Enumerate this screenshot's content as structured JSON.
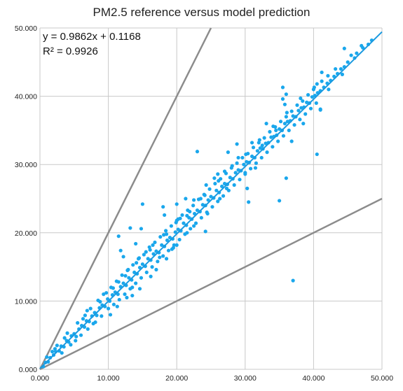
{
  "chart_data": {
    "type": "scatter",
    "title": "PM2.5 reference versus model prediction",
    "xlabel": "",
    "ylabel": "",
    "xlim": [
      0,
      50
    ],
    "ylim": [
      0,
      50
    ],
    "x_ticks": [
      "0.000",
      "10.000",
      "20.000",
      "30.000",
      "40.000",
      "50.000"
    ],
    "y_ticks": [
      "0.000",
      "10.000",
      "20.000",
      "30.000",
      "40.000",
      "50.000"
    ],
    "grid": true,
    "trendline": {
      "slope": 0.9862,
      "intercept": 0.1168,
      "equation": "y = 0.9862x + 0.1168",
      "r2": "R² = 0.9926"
    },
    "reference_lines": [
      {
        "slope": 2.0,
        "intercept": 0
      },
      {
        "slope": 0.5,
        "intercept": 0
      }
    ],
    "colors": {
      "points": "#1aa7ec",
      "trendline": "#1a9ae0",
      "reference": "#8c8c8c",
      "grid": "#c8c8c8"
    },
    "series": [
      {
        "values": [
          [
            0.5,
            0.4
          ],
          [
            0.8,
            1.0
          ],
          [
            1.2,
            1.1
          ],
          [
            1.5,
            1.7
          ],
          [
            2.0,
            2.1
          ],
          [
            2.3,
            2.6
          ],
          [
            2.8,
            2.7
          ],
          [
            3.1,
            3.4
          ],
          [
            3.5,
            3.3
          ],
          [
            3.9,
            4.2
          ],
          [
            4.2,
            4.0
          ],
          [
            4.6,
            4.9
          ],
          [
            5.0,
            5.2
          ],
          [
            5.3,
            4.8
          ],
          [
            5.7,
            5.9
          ],
          [
            6.1,
            6.4
          ],
          [
            6.5,
            6.2
          ],
          [
            6.8,
            7.1
          ],
          [
            7.2,
            7.0
          ],
          [
            7.6,
            7.8
          ],
          [
            8.0,
            8.3
          ],
          [
            8.3,
            7.9
          ],
          [
            8.7,
            9.0
          ],
          [
            9.1,
            9.4
          ],
          [
            9.5,
            9.2
          ],
          [
            9.9,
            10.3
          ],
          [
            10.2,
            10.0
          ],
          [
            10.6,
            10.9
          ],
          [
            11.0,
            11.3
          ],
          [
            11.4,
            11.0
          ],
          [
            11.8,
            12.1
          ],
          [
            12.2,
            12.6
          ],
          [
            12.6,
            12.3
          ],
          [
            13.0,
            13.4
          ],
          [
            13.4,
            13.1
          ],
          [
            13.8,
            14.2
          ],
          [
            14.2,
            14.0
          ],
          [
            14.6,
            14.9
          ],
          [
            15.0,
            15.4
          ],
          [
            15.4,
            15.1
          ],
          [
            15.8,
            16.2
          ],
          [
            16.2,
            16.0
          ],
          [
            16.6,
            16.9
          ],
          [
            17.0,
            17.3
          ],
          [
            17.4,
            17.1
          ],
          [
            17.8,
            18.2
          ],
          [
            18.2,
            18.0
          ],
          [
            18.6,
            18.9
          ],
          [
            19.0,
            19.3
          ],
          [
            19.4,
            19.1
          ],
          [
            19.8,
            20.1
          ],
          [
            20.2,
            20.5
          ],
          [
            20.6,
            20.3
          ],
          [
            21.0,
            21.4
          ],
          [
            21.4,
            21.1
          ],
          [
            21.8,
            22.2
          ],
          [
            22.2,
            22.0
          ],
          [
            22.6,
            22.8
          ],
          [
            23.0,
            23.3
          ],
          [
            23.4,
            23.1
          ],
          [
            23.8,
            24.1
          ],
          [
            24.2,
            24.0
          ],
          [
            24.6,
            24.8
          ],
          [
            25.0,
            25.3
          ],
          [
            25.4,
            25.1
          ],
          [
            25.8,
            26.2
          ],
          [
            26.2,
            25.9
          ],
          [
            26.6,
            26.8
          ],
          [
            27.0,
            27.2
          ],
          [
            27.4,
            27.1
          ],
          [
            27.8,
            28.1
          ],
          [
            28.2,
            27.9
          ],
          [
            28.6,
            28.8
          ],
          [
            29.0,
            29.2
          ],
          [
            29.4,
            29.1
          ],
          [
            29.8,
            30.0
          ],
          [
            30.2,
            30.4
          ],
          [
            30.6,
            30.3
          ],
          [
            31.0,
            31.2
          ],
          [
            31.4,
            31.0
          ],
          [
            31.8,
            32.0
          ],
          [
            32.2,
            32.4
          ],
          [
            32.6,
            32.3
          ],
          [
            33.0,
            33.1
          ],
          [
            33.4,
            33.2
          ],
          [
            33.8,
            34.0
          ],
          [
            34.2,
            34.1
          ],
          [
            34.6,
            34.3
          ],
          [
            35.0,
            35.2
          ],
          [
            35.4,
            35.0
          ],
          [
            35.8,
            36.0
          ],
          [
            36.2,
            36.3
          ],
          [
            36.6,
            36.4
          ],
          [
            37.0,
            37.1
          ],
          [
            37.4,
            37.0
          ],
          [
            37.8,
            37.9
          ],
          [
            38.2,
            38.3
          ],
          [
            38.6,
            38.4
          ],
          [
            39.0,
            39.1
          ],
          [
            39.4,
            39.0
          ],
          [
            39.8,
            39.9
          ],
          [
            40.2,
            40.1
          ],
          [
            40.6,
            40.5
          ],
          [
            41.0,
            40.8
          ],
          [
            41.5,
            41.3
          ],
          [
            42.0,
            41.9
          ],
          [
            42.5,
            42.3
          ],
          [
            43.0,
            42.9
          ],
          [
            43.5,
            43.3
          ],
          [
            44.0,
            44.0
          ],
          [
            44.5,
            44.3
          ],
          [
            45.0,
            45.0
          ],
          [
            46.0,
            45.6
          ],
          [
            47.0,
            47.4
          ],
          [
            48.0,
            47.6
          ],
          [
            48.5,
            48.2
          ],
          [
            1.0,
            1.8
          ],
          [
            1.8,
            2.6
          ],
          [
            2.5,
            3.5
          ],
          [
            3.2,
            2.4
          ],
          [
            4.0,
            5.3
          ],
          [
            4.5,
            3.6
          ],
          [
            5.5,
            6.8
          ],
          [
            6.0,
            5.0
          ],
          [
            6.6,
            7.9
          ],
          [
            7.0,
            5.9
          ],
          [
            7.4,
            8.9
          ],
          [
            8.1,
            6.9
          ],
          [
            8.5,
            10.1
          ],
          [
            9.0,
            7.8
          ],
          [
            9.3,
            11.0
          ],
          [
            10.0,
            8.9
          ],
          [
            10.4,
            12.0
          ],
          [
            10.8,
            9.5
          ],
          [
            11.2,
            12.9
          ],
          [
            11.6,
            10.2
          ],
          [
            12.0,
            13.8
          ],
          [
            12.4,
            11.0
          ],
          [
            12.8,
            14.5
          ],
          [
            13.2,
            11.8
          ],
          [
            13.6,
            15.3
          ],
          [
            14.0,
            12.6
          ],
          [
            14.4,
            16.2
          ],
          [
            14.8,
            13.4
          ],
          [
            15.2,
            16.8
          ],
          [
            15.6,
            14.2
          ],
          [
            16.0,
            17.9
          ],
          [
            16.4,
            15.0
          ],
          [
            16.8,
            18.6
          ],
          [
            17.2,
            15.8
          ],
          [
            17.6,
            19.4
          ],
          [
            18.0,
            16.6
          ],
          [
            18.4,
            20.3
          ],
          [
            18.8,
            17.4
          ],
          [
            19.2,
            21.0
          ],
          [
            19.6,
            18.2
          ],
          [
            20.0,
            21.8
          ],
          [
            20.4,
            19.0
          ],
          [
            20.8,
            22.6
          ],
          [
            21.2,
            19.8
          ],
          [
            21.6,
            23.3
          ],
          [
            22.0,
            20.6
          ],
          [
            22.4,
            24.0
          ],
          [
            22.8,
            21.4
          ],
          [
            23.2,
            24.9
          ],
          [
            23.6,
            22.2
          ],
          [
            24.0,
            25.6
          ],
          [
            24.4,
            23.0
          ],
          [
            24.8,
            26.4
          ],
          [
            25.2,
            23.8
          ],
          [
            25.6,
            27.2
          ],
          [
            26.0,
            24.6
          ],
          [
            26.4,
            27.9
          ],
          [
            26.8,
            25.4
          ],
          [
            27.2,
            28.7
          ],
          [
            27.6,
            26.2
          ],
          [
            28.0,
            29.5
          ],
          [
            28.4,
            27.0
          ],
          [
            28.8,
            30.2
          ],
          [
            29.2,
            27.8
          ],
          [
            29.6,
            31.0
          ],
          [
            30.0,
            28.6
          ],
          [
            30.4,
            31.6
          ],
          [
            30.8,
            29.4
          ],
          [
            31.2,
            32.5
          ],
          [
            31.6,
            30.2
          ],
          [
            32.0,
            33.2
          ],
          [
            32.4,
            31.0
          ],
          [
            32.8,
            33.9
          ],
          [
            33.2,
            31.8
          ],
          [
            33.6,
            34.8
          ],
          [
            34.0,
            32.6
          ],
          [
            34.4,
            35.5
          ],
          [
            34.8,
            33.4
          ],
          [
            35.2,
            36.3
          ],
          [
            35.6,
            34.2
          ],
          [
            36.0,
            37.0
          ],
          [
            36.4,
            35.0
          ],
          [
            36.8,
            37.8
          ],
          [
            37.2,
            35.8
          ],
          [
            37.6,
            38.7
          ],
          [
            38.0,
            36.6
          ],
          [
            38.4,
            39.3
          ],
          [
            38.8,
            37.4
          ],
          [
            39.2,
            40.2
          ],
          [
            39.6,
            38.2
          ],
          [
            40.0,
            41.0
          ],
          [
            40.4,
            39.0
          ],
          [
            41.2,
            42.2
          ],
          [
            42.2,
            41.0
          ],
          [
            43.2,
            44.0
          ],
          [
            44.2,
            43.2
          ],
          [
            2.2,
            3.0
          ],
          [
            3.6,
            4.6
          ],
          [
            5.2,
            4.2
          ],
          [
            6.3,
            7.4
          ],
          [
            7.8,
            6.7
          ],
          [
            9.7,
            11.2
          ],
          [
            11.5,
            12.8
          ],
          [
            12.5,
            13.7
          ],
          [
            13.5,
            12.0
          ],
          [
            14.5,
            16.3
          ],
          [
            15.5,
            17.2
          ],
          [
            16.5,
            18.2
          ],
          [
            17.5,
            16.4
          ],
          [
            18.5,
            19.8
          ],
          [
            19.5,
            17.8
          ],
          [
            20.5,
            22.1
          ],
          [
            21.5,
            20.0
          ],
          [
            22.5,
            21.0
          ],
          [
            23.5,
            25.0
          ],
          [
            24.5,
            22.8
          ],
          [
            6.9,
            8.6
          ],
          [
            8.8,
            9.9
          ],
          [
            10.7,
            11.9
          ],
          [
            12.9,
            14.6
          ],
          [
            14.1,
            15.6
          ],
          [
            16.1,
            17.5
          ],
          [
            18.1,
            19.7
          ],
          [
            19.9,
            21.5
          ],
          [
            21.9,
            23.1
          ],
          [
            24.1,
            25.5
          ],
          [
            26.1,
            27.6
          ],
          [
            28.1,
            29.8
          ],
          [
            30.1,
            31.5
          ],
          [
            32.1,
            33.6
          ],
          [
            34.1,
            35.6
          ],
          [
            36.1,
            37.6
          ],
          [
            38.1,
            39.7
          ],
          [
            40.1,
            41.3
          ],
          [
            42.1,
            43.0
          ],
          [
            45.5,
            46.0
          ],
          [
            40.5,
            41.8
          ],
          [
            41.0,
            38.1
          ],
          [
            41.2,
            43.5
          ],
          [
            44.5,
            47.0
          ],
          [
            46.3,
            46.3
          ],
          [
            47.2,
            47.1
          ],
          [
            37.0,
            13.0
          ],
          [
            36.0,
            28.0
          ],
          [
            35.0,
            24.7
          ],
          [
            40.5,
            31.5
          ],
          [
            41.0,
            38.0
          ],
          [
            38.5,
            36.0
          ],
          [
            36.8,
            33.4
          ],
          [
            30.5,
            24.5
          ],
          [
            30.3,
            26.5
          ],
          [
            24.2,
            20.2
          ],
          [
            23.0,
            31.9
          ],
          [
            21.5,
            22.5
          ],
          [
            20.0,
            24.2
          ],
          [
            18.0,
            23.8
          ],
          [
            15.0,
            24.2
          ],
          [
            14.0,
            18.4
          ],
          [
            13.2,
            20.7
          ],
          [
            14.8,
            20.6
          ],
          [
            11.8,
            17.4
          ],
          [
            11.5,
            19.5
          ],
          [
            12.2,
            16.5
          ],
          [
            18.2,
            22.6
          ],
          [
            20.2,
            22.0
          ],
          [
            21.3,
            25.0
          ],
          [
            25.5,
            28.0
          ],
          [
            26.0,
            28.6
          ],
          [
            27.5,
            31.8
          ],
          [
            31.0,
            33.2
          ],
          [
            33.1,
            36.0
          ],
          [
            35.5,
            41.3
          ],
          [
            35.8,
            38.8
          ],
          [
            36.0,
            40.3
          ],
          [
            35.5,
            39.6
          ],
          [
            34.5,
            35.0
          ],
          [
            28.8,
            33.0
          ],
          [
            29.0,
            31.0
          ],
          [
            30.0,
            28.8
          ],
          [
            31.5,
            29.5
          ],
          [
            32.5,
            32.8
          ],
          [
            27.3,
            26.5
          ],
          [
            26.3,
            25.0
          ],
          [
            27.0,
            29.0
          ],
          [
            24.3,
            27.0
          ],
          [
            22.5,
            24.8
          ],
          [
            16.2,
            13.6
          ],
          [
            17.0,
            14.6
          ],
          [
            18.5,
            16.2
          ],
          [
            19.3,
            17.6
          ],
          [
            20.0,
            18.2
          ],
          [
            14.6,
            11.8
          ],
          [
            13.5,
            10.8
          ],
          [
            12.7,
            10.5
          ],
          [
            11.3,
            9.2
          ],
          [
            10.3,
            8.0
          ]
        ]
      }
    ]
  }
}
